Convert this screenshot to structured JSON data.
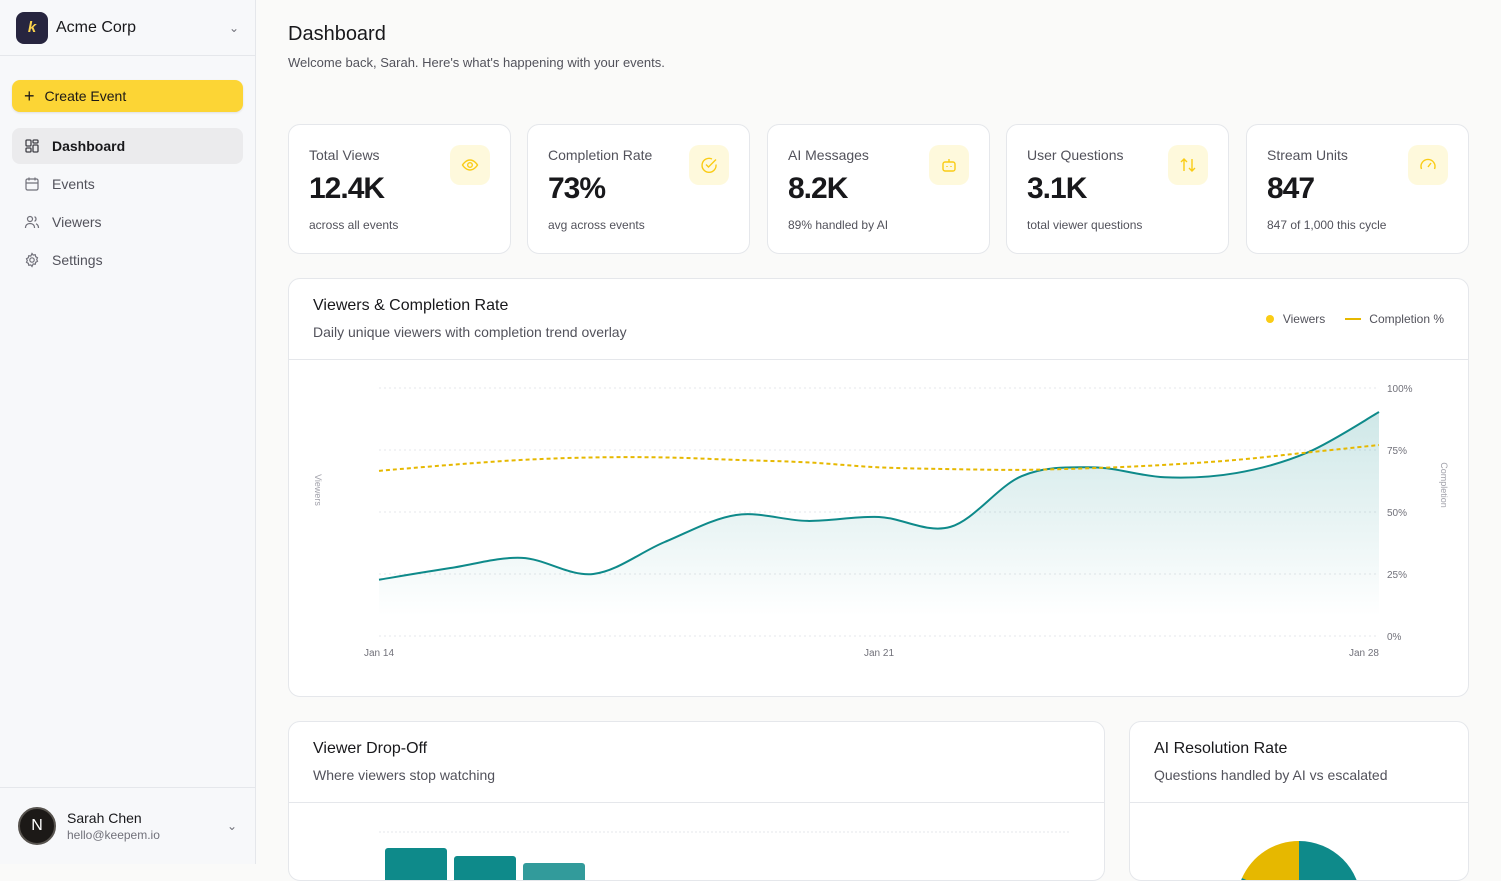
{
  "org": {
    "name": "Acme Corp",
    "logo": "k"
  },
  "create_label": "Create Event",
  "nav": [
    {
      "label": "Dashboard",
      "icon": "grid-icon"
    },
    {
      "label": "Events",
      "icon": "calendar-icon"
    },
    {
      "label": "Viewers",
      "icon": "users-icon"
    },
    {
      "label": "Settings",
      "icon": "gear-icon"
    }
  ],
  "user": {
    "initial": "N",
    "name": "Sarah Chen",
    "email": "hello@keepem.io"
  },
  "header": {
    "title": "Dashboard",
    "subtitle": "Welcome back, Sarah. Here's what's happening with your events."
  },
  "cards": [
    {
      "label": "Total Views",
      "value": "12.4K",
      "sub": "across all events",
      "icon": "eye-icon"
    },
    {
      "label": "Completion Rate",
      "value": "73%",
      "sub": "avg across events",
      "icon": "check-circle-icon"
    },
    {
      "label": "AI Messages",
      "value": "8.2K",
      "sub": "89% handled by AI",
      "icon": "bot-icon"
    },
    {
      "label": "User Questions",
      "value": "3.1K",
      "sub": "total viewer questions",
      "icon": "arrows-up-down-icon"
    },
    {
      "label": "Stream Units",
      "value": "847",
      "sub": "847 of 1,000 this cycle",
      "icon": "gauge-icon"
    }
  ],
  "colors": {
    "accent": "#fcd535",
    "teal": "#0e8a8a",
    "gold": "#e6b800"
  },
  "viewers_panel": {
    "title": "Viewers & Completion Rate",
    "subtitle": "Daily unique viewers with completion trend overlay",
    "legend": [
      "Viewers",
      "Completion %"
    ]
  },
  "chart_data": {
    "type": "line",
    "xlabels": [
      "Jan 14",
      "Jan 21",
      "Jan 28"
    ],
    "x": [
      "Jan 14",
      "Jan 15",
      "Jan 16",
      "Jan 17",
      "Jan 18",
      "Jan 19",
      "Jan 20",
      "Jan 21",
      "Jan 22",
      "Jan 23",
      "Jan 24",
      "Jan 25",
      "Jan 26",
      "Jan 27",
      "Jan 28"
    ],
    "ylabel_left": "Viewers",
    "ylabel_right": "Completion",
    "right_ticks": [
      "0%",
      "25%",
      "50%",
      "75%",
      "100%"
    ],
    "ylim_right": [
      0,
      100
    ],
    "grid": true,
    "legend": "top-right",
    "series": [
      {
        "name": "Viewers",
        "style": "area",
        "values": [
          22.7,
          27.4,
          31.5,
          25,
          37.9,
          48.8,
          46.4,
          48,
          44,
          64.5,
          68,
          64,
          65.7,
          74,
          90.3
        ]
      },
      {
        "name": "Completion %",
        "style": "dashed",
        "values": [
          66.6,
          69,
          71,
          72,
          72,
          71,
          70,
          68,
          67.3,
          67,
          67.7,
          69,
          71,
          74,
          77
        ]
      }
    ]
  },
  "dropoff_panel": {
    "title": "Viewer Drop-Off",
    "subtitle": "Where viewers stop watching"
  },
  "ai_panel": {
    "title": "AI Resolution Rate",
    "subtitle": "Questions handled by AI vs escalated"
  }
}
